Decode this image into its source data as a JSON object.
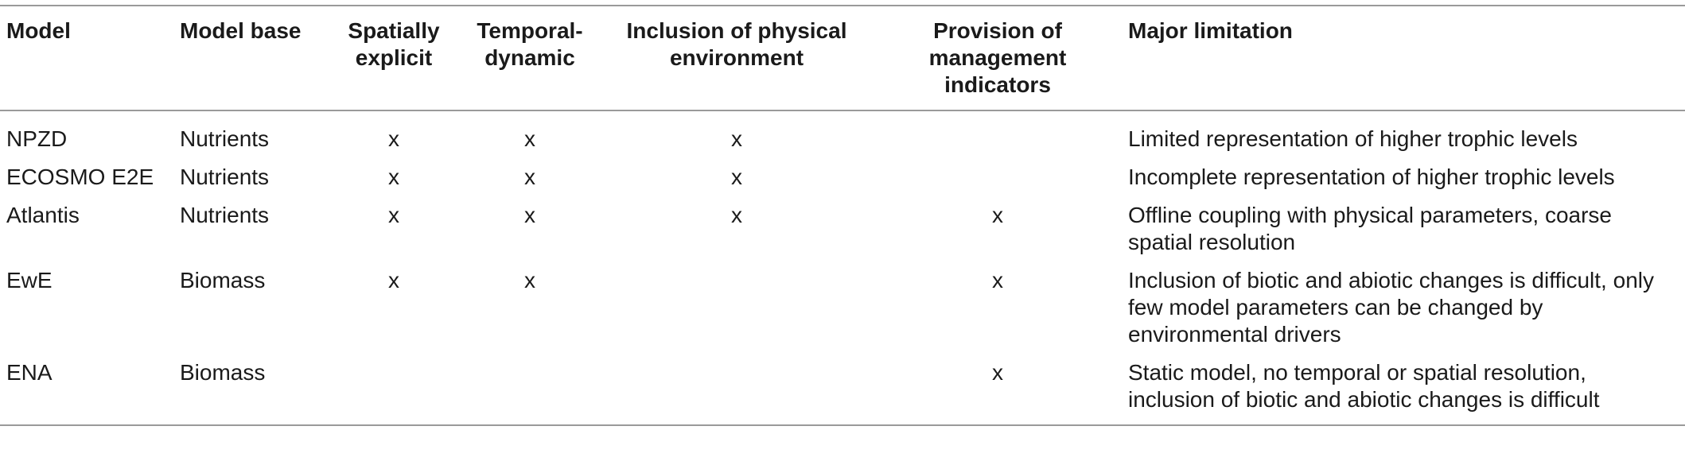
{
  "headers": {
    "model": "Model",
    "model_base": "Model base",
    "spatially_explicit": "Spatially explicit",
    "temporal_dynamic": "Temporal-dynamic",
    "physical_environment": "Inclusion of physical environment",
    "management_indicators": "Provision of management indicators",
    "major_limitation": "Major limitation"
  },
  "rows": [
    {
      "model": "NPZD",
      "model_base": "Nutrients",
      "spatially_explicit": "x",
      "temporal_dynamic": "x",
      "physical_environment": "x",
      "management_indicators": "",
      "major_limitation": "Limited representation of higher trophic levels"
    },
    {
      "model": "ECOSMO E2E",
      "model_base": "Nutrients",
      "spatially_explicit": "x",
      "temporal_dynamic": "x",
      "physical_environment": "x",
      "management_indicators": "",
      "major_limitation": "Incomplete representation of higher trophic levels"
    },
    {
      "model": "Atlantis",
      "model_base": "Nutrients",
      "spatially_explicit": "x",
      "temporal_dynamic": "x",
      "physical_environment": "x",
      "management_indicators": "x",
      "major_limitation": "Offline coupling with physical parameters, coarse spatial resolution"
    },
    {
      "model": "EwE",
      "model_base": "Biomass",
      "spatially_explicit": "x",
      "temporal_dynamic": "x",
      "physical_environment": "",
      "management_indicators": "x",
      "major_limitation": "Inclusion of biotic and abiotic changes is difficult, only few model parameters can be changed by environmental drivers"
    },
    {
      "model": "ENA",
      "model_base": "Biomass",
      "spatially_explicit": "",
      "temporal_dynamic": "",
      "physical_environment": "",
      "management_indicators": "x",
      "major_limitation": "Static model, no temporal or spatial resolution, inclusion of biotic and abiotic changes is difficult"
    }
  ]
}
